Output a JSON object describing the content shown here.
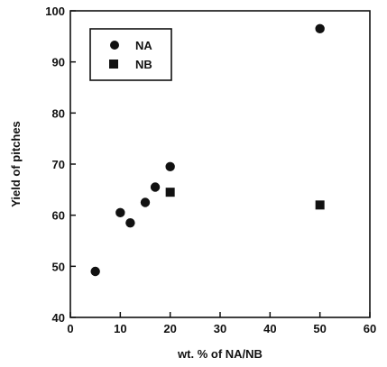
{
  "chart_data": {
    "type": "scatter",
    "title": "",
    "xlabel": "wt. % of NA/NB",
    "ylabel": "Yield of pitches",
    "xlim": [
      0,
      60
    ],
    "ylim": [
      40,
      100
    ],
    "xticks": [
      0,
      10,
      20,
      30,
      40,
      50,
      60
    ],
    "yticks": [
      40,
      50,
      60,
      70,
      80,
      90,
      100
    ],
    "grid": false,
    "legend_position": "top-left",
    "series": [
      {
        "name": "NA",
        "marker": "circle",
        "color": "#111111",
        "points": [
          {
            "x": 5,
            "y": 49
          },
          {
            "x": 10,
            "y": 60.5
          },
          {
            "x": 12,
            "y": 58.5
          },
          {
            "x": 15,
            "y": 62.5
          },
          {
            "x": 17,
            "y": 65.5
          },
          {
            "x": 20,
            "y": 69.5
          },
          {
            "x": 50,
            "y": 96.5
          }
        ]
      },
      {
        "name": "NB",
        "marker": "square",
        "color": "#111111",
        "points": [
          {
            "x": 20,
            "y": 64.5
          },
          {
            "x": 50,
            "y": 62
          }
        ]
      }
    ]
  }
}
